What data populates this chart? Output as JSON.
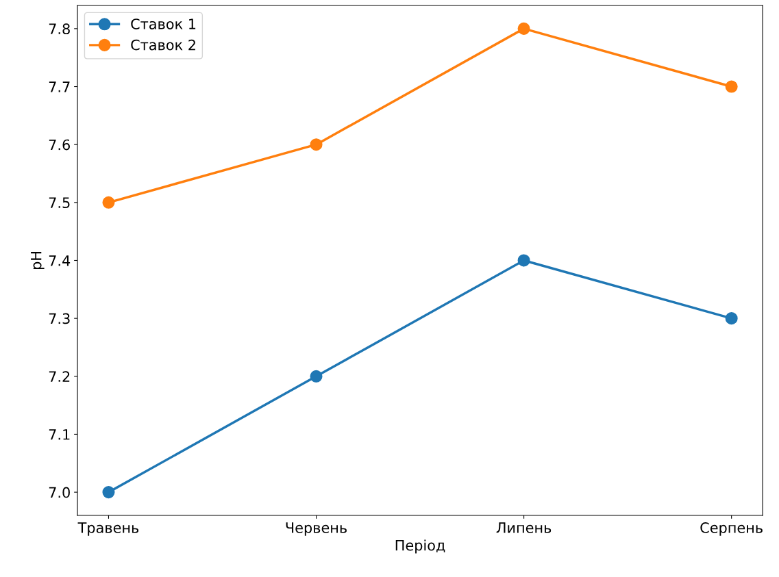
{
  "chart_data": {
    "type": "line",
    "xlabel": "Період",
    "ylabel": "pH",
    "categories": [
      "Травень",
      "Червень",
      "Липень",
      "Серпень"
    ],
    "series": [
      {
        "name": "Ставок 1",
        "color": "#1f77b4",
        "values": [
          7.0,
          7.2,
          7.4,
          7.3
        ]
      },
      {
        "name": "Ставок 2",
        "color": "#ff7f0e",
        "values": [
          7.5,
          7.6,
          7.8,
          7.7
        ]
      }
    ],
    "ylim": [
      6.96,
      7.84
    ],
    "yticks": [
      {
        "value": 7.0,
        "label": "7.0"
      },
      7.1,
      7.2,
      7.3,
      7.4,
      7.5,
      7.6,
      7.7,
      7.8
    ],
    "legend": "top left",
    "marker": "circle",
    "line_style": "solid"
  }
}
